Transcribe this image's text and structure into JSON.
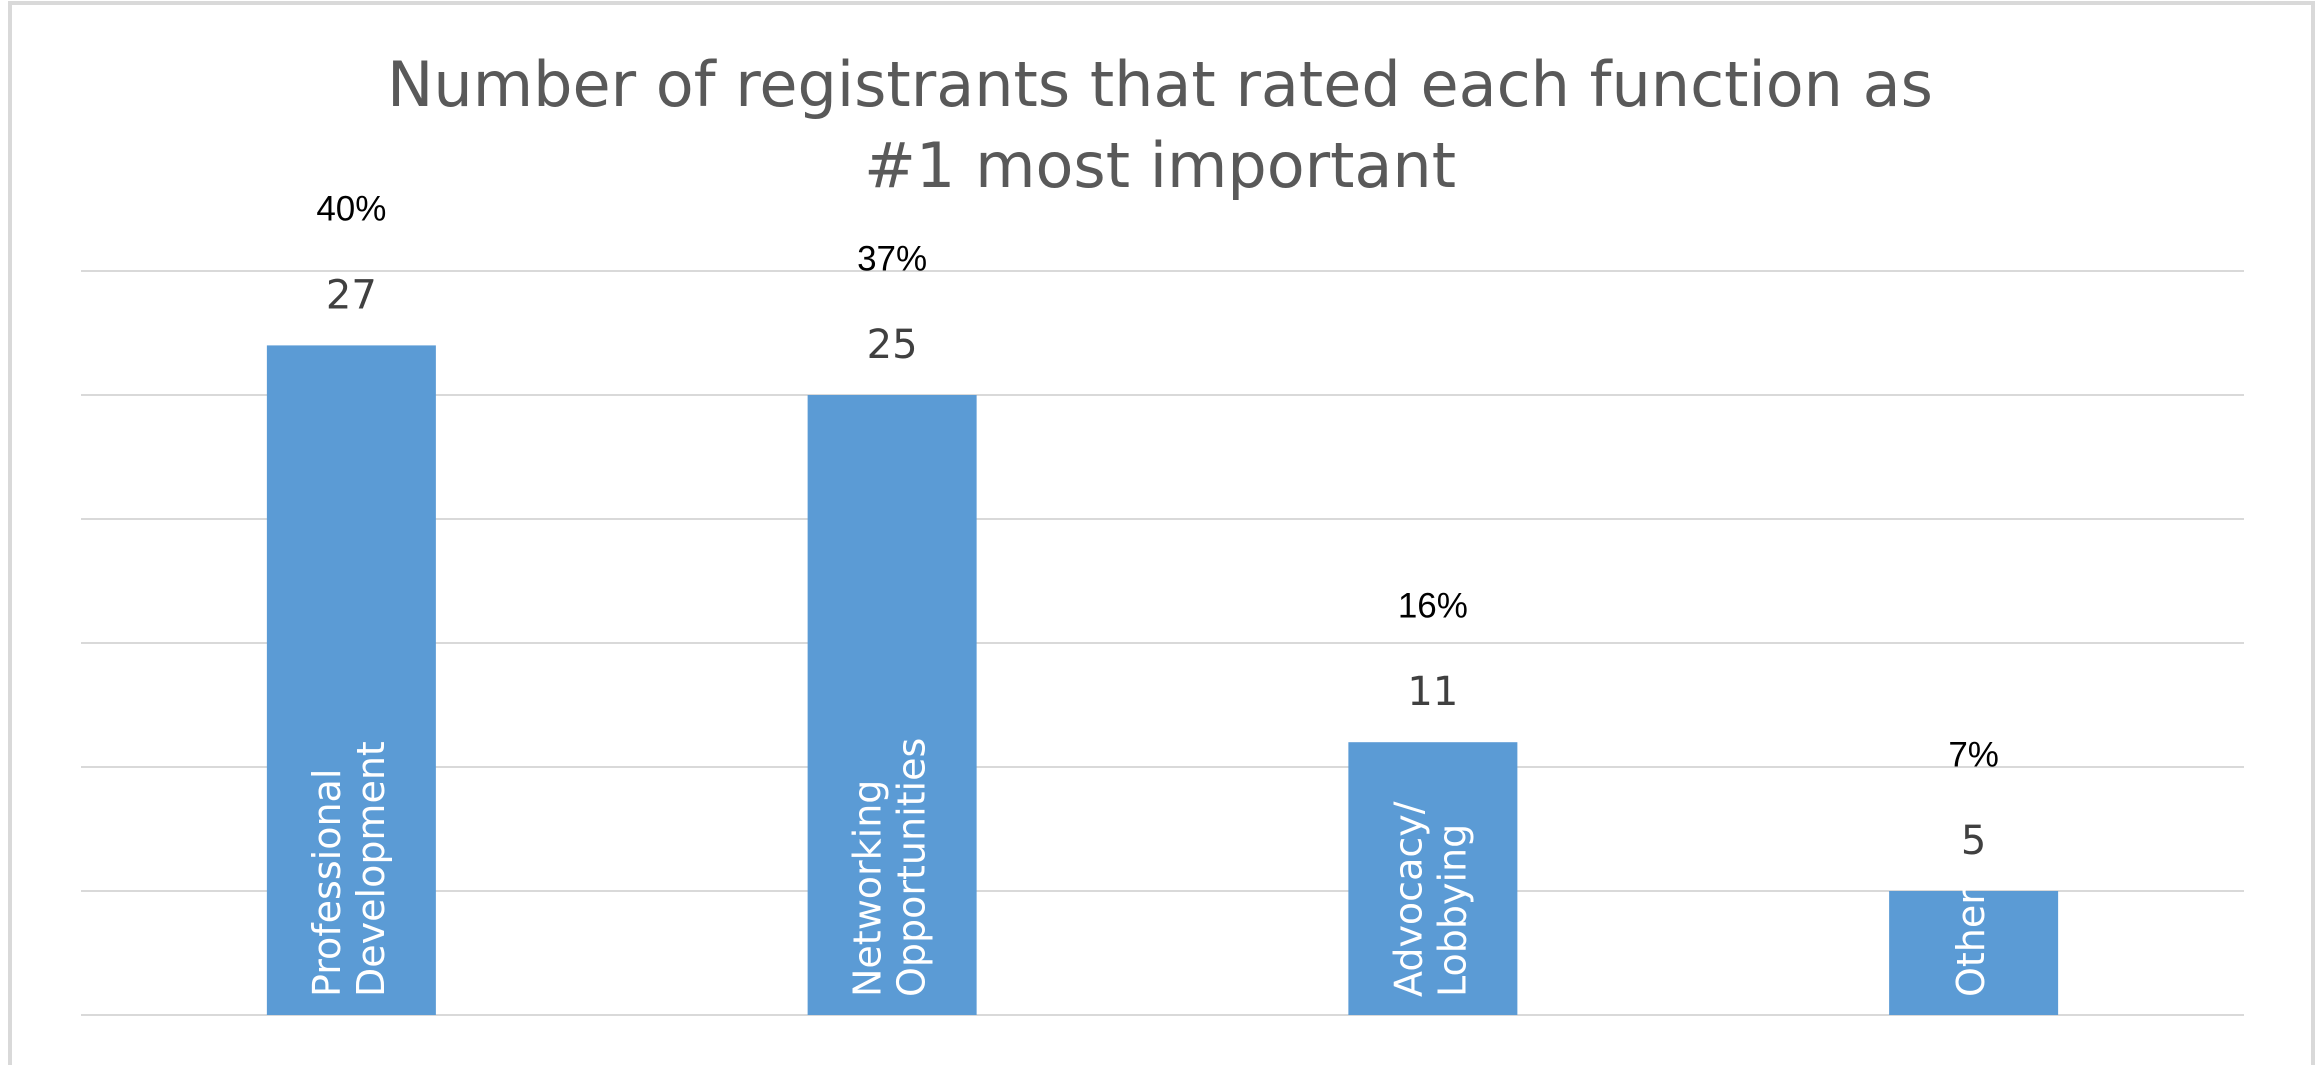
{
  "chart_data": {
    "type": "bar",
    "title": [
      "Number of registrants that rated each function as",
      "#1 most important"
    ],
    "categories": [
      [
        "Professional",
        "Development"
      ],
      [
        "Networking",
        "Opportunities"
      ],
      [
        "Advocacy/",
        "Lobbying"
      ],
      [
        "Other"
      ]
    ],
    "values": [
      27,
      25,
      11,
      5
    ],
    "percent_labels": [
      "40%",
      "37%",
      "16%",
      "7%"
    ],
    "color": "#5b9bd5",
    "ylim": [
      0,
      30
    ],
    "yticks": [
      0,
      5,
      10,
      15,
      20,
      25,
      30
    ],
    "grid": true
  }
}
